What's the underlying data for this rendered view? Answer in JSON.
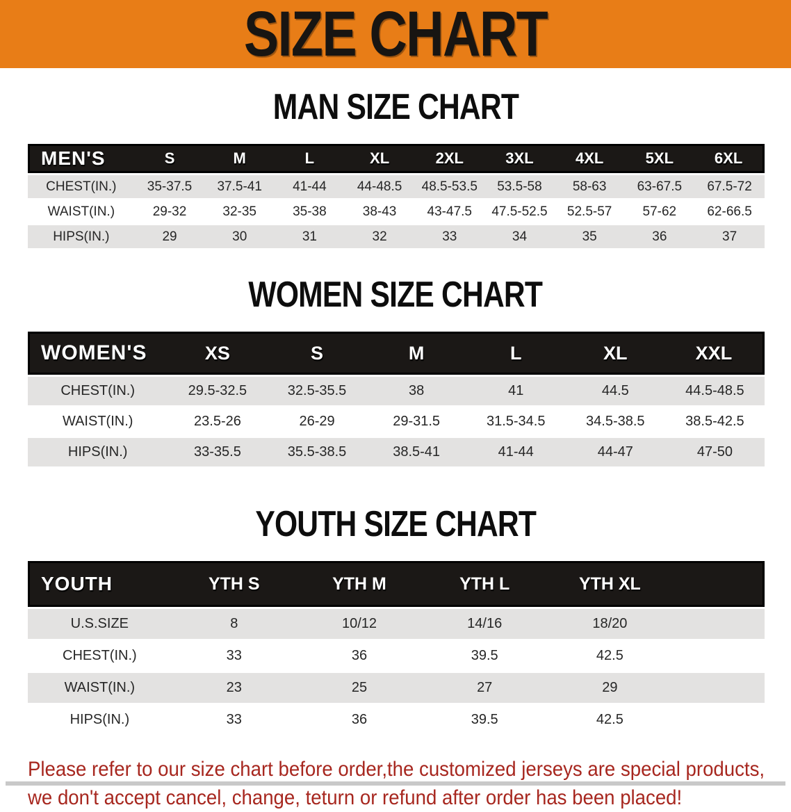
{
  "banner": {
    "title": "SIZE CHART"
  },
  "sections": [
    {
      "heading": "MAN SIZE CHART",
      "table": {
        "header_label": "MEN'S",
        "columns": [
          "S",
          "M",
          "L",
          "XL",
          "2XL",
          "3XL",
          "4XL",
          "5XL",
          "6XL"
        ],
        "rows": [
          {
            "label": "CHEST(IN.)",
            "values": [
              "35-37.5",
              "37.5-41",
              "41-44",
              "44-48.5",
              "48.5-53.5",
              "53.5-58",
              "58-63",
              "63-67.5",
              "67.5-72"
            ]
          },
          {
            "label": "WAIST(IN.)",
            "values": [
              "29-32",
              "32-35",
              "35-38",
              "38-43",
              "43-47.5",
              "47.5-52.5",
              "52.5-57",
              "57-62",
              "62-66.5"
            ]
          },
          {
            "label": "HIPS(IN.)",
            "values": [
              "29",
              "30",
              "31",
              "32",
              "33",
              "34",
              "35",
              "36",
              "37"
            ]
          }
        ]
      }
    },
    {
      "heading": "WOMEN SIZE CHART",
      "table": {
        "header_label": "WOMEN'S",
        "columns": [
          "XS",
          "S",
          "M",
          "L",
          "XL",
          "XXL"
        ],
        "rows": [
          {
            "label": "CHEST(IN.)",
            "values": [
              "29.5-32.5",
              "32.5-35.5",
              "38",
              "41",
              "44.5",
              "44.5-48.5"
            ]
          },
          {
            "label": "WAIST(IN.)",
            "values": [
              "23.5-26",
              "26-29",
              "29-31.5",
              "31.5-34.5",
              "34.5-38.5",
              "38.5-42.5"
            ]
          },
          {
            "label": "HIPS(IN.)",
            "values": [
              "33-35.5",
              "35.5-38.5",
              "38.5-41",
              "41-44",
              "44-47",
              "47-50"
            ]
          }
        ]
      }
    },
    {
      "heading": "YOUTH SIZE CHART",
      "table": {
        "header_label": "YOUTH",
        "columns": [
          "YTH S",
          "YTH M",
          "YTH L",
          "YTH XL"
        ],
        "rows": [
          {
            "label": "U.S.SIZE",
            "values": [
              "8",
              "10/12",
              "14/16",
              "18/20"
            ]
          },
          {
            "label": "CHEST(IN.)",
            "values": [
              "33",
              "36",
              "39.5",
              "42.5"
            ]
          },
          {
            "label": "WAIST(IN.)",
            "values": [
              "23",
              "25",
              "27",
              "29"
            ]
          },
          {
            "label": "HIPS(IN.)",
            "values": [
              "33",
              "36",
              "39.5",
              "42.5"
            ]
          }
        ]
      }
    }
  ],
  "footer_note": {
    "line1": "Please refer to our size chart before order,the customized jerseys are special products,",
    "line2": "we don't accept cancel, change, teturn or refund after order has been placed!"
  },
  "colors": {
    "banner_bg": "#e87d17",
    "header_bar": "#1b1816",
    "row_grey": "#e3e2e1",
    "note_red": "#a7271f"
  }
}
